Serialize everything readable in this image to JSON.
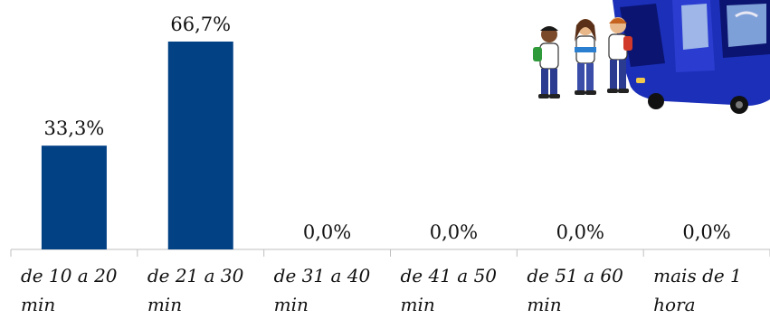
{
  "chart_data": {
    "type": "bar",
    "categories": [
      "de 10 a 20 min",
      "de 21 a 30 min",
      "de 31 a 40 min",
      "de 41 a 50 min",
      "de 51 a 60 min",
      "mais de 1 hora"
    ],
    "category_lines": [
      [
        "de 10 a 20",
        "min"
      ],
      [
        "de 21 a 30",
        "min"
      ],
      [
        "de 31 a 40",
        "min"
      ],
      [
        "de 41 a 50",
        "min"
      ],
      [
        "de 51 a 60",
        "min"
      ],
      [
        "mais de 1",
        "hora"
      ]
    ],
    "values": [
      33.3,
      66.7,
      0.0,
      0.0,
      0.0,
      0.0
    ],
    "value_labels": [
      "33,3%",
      "66,7%",
      "0,0%",
      "0,0%",
      "0,0%",
      "0,0%"
    ],
    "ylim": [
      0,
      70
    ],
    "grid": false,
    "bar_color": "#034185",
    "axis_color": "#bfbfbf"
  },
  "illustration": {
    "icon": "students-boarding-bus-illustration",
    "bus_color": "#1b2fb8",
    "bus_dark": "#0b1470"
  }
}
